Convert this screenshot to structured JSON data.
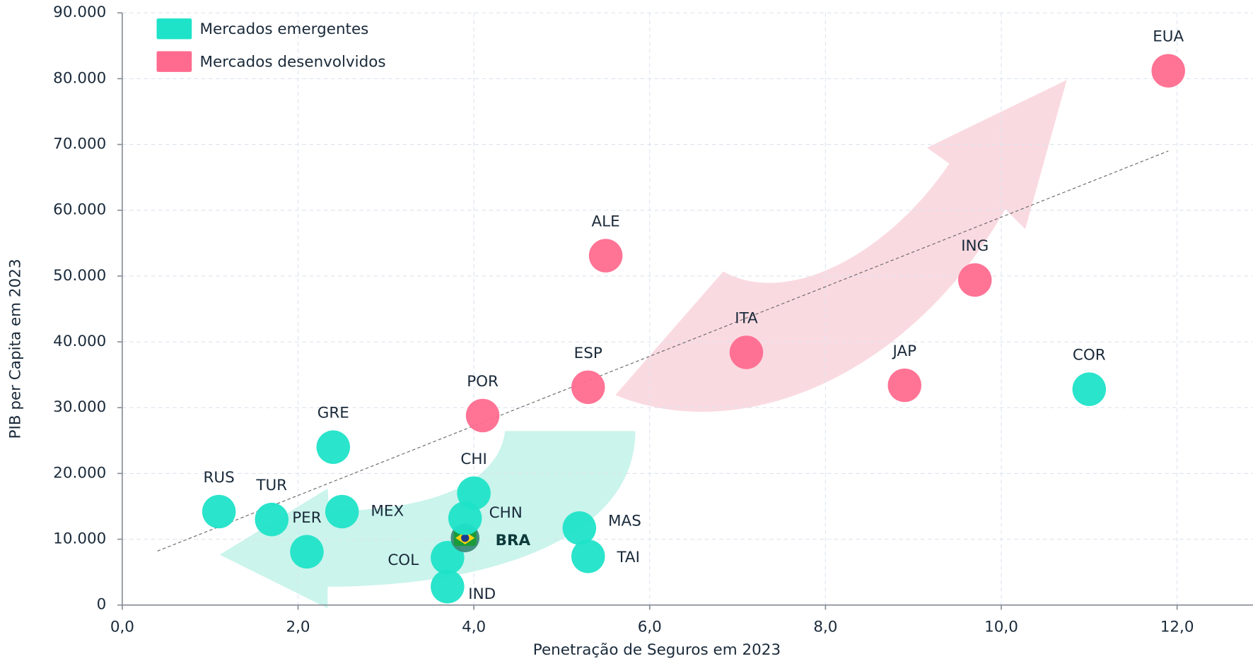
{
  "chart_data": {
    "type": "scatter",
    "x_label": "Penetração de Seguros em 2023",
    "y_label": "PIB per Capita em 2023",
    "xlim": [
      0,
      12.9
    ],
    "ylim": [
      0,
      90000
    ],
    "xticks": [
      {
        "value": 0,
        "label": "0,0"
      },
      {
        "value": 2,
        "label": "2,0"
      },
      {
        "value": 4,
        "label": "4,0"
      },
      {
        "value": 6,
        "label": "6,0"
      },
      {
        "value": 8,
        "label": "8,0"
      },
      {
        "value": 10,
        "label": "10,0"
      },
      {
        "value": 12,
        "label": "12,0"
      }
    ],
    "yticks": [
      0,
      {
        "value": 10000,
        "label": "10.000"
      },
      {
        "value": 20000,
        "label": "20.000"
      },
      {
        "value": 30000,
        "label": "30.000"
      },
      {
        "value": 40000,
        "label": "40.000"
      },
      {
        "value": 50000,
        "label": "50.000"
      },
      {
        "value": 60000,
        "label": "60.000"
      },
      {
        "value": 70000,
        "label": "70.000"
      },
      {
        "value": 80000,
        "label": "80.000"
      },
      {
        "value": 90000,
        "label": "90.000"
      }
    ],
    "grid": true,
    "legend": "top-left",
    "series": [
      {
        "name": "Mercados emergentes",
        "color": "#1fe3c8",
        "labels": [
          "RUS",
          "TUR",
          "PER",
          "MEX",
          "GRE",
          "COL",
          "IND",
          "BRA",
          "CHN",
          "CHI",
          "MAS",
          "TAI",
          "COR"
        ],
        "x": [
          1.1,
          1.7,
          2.1,
          2.5,
          2.4,
          3.7,
          3.7,
          3.9,
          3.9,
          4.0,
          5.2,
          5.3,
          11.0
        ],
        "y": [
          14200,
          13000,
          8100,
          14200,
          24000,
          7200,
          2800,
          10200,
          13200,
          17000,
          11700,
          7400,
          32800
        ]
      },
      {
        "name": "Mercados desenvolvidos",
        "color": "#ff6b8f",
        "labels": [
          "POR",
          "ESP",
          "ALE",
          "ITA",
          "JAP",
          "ING",
          "EUA"
        ],
        "x": [
          4.1,
          5.3,
          5.5,
          7.1,
          8.9,
          9.7,
          11.9
        ],
        "y": [
          28800,
          33100,
          53100,
          38400,
          33400,
          49400,
          81200
        ]
      }
    ],
    "trendline": {
      "x": [
        0.4,
        11.9
      ],
      "y": [
        8200,
        69000
      ]
    }
  }
}
